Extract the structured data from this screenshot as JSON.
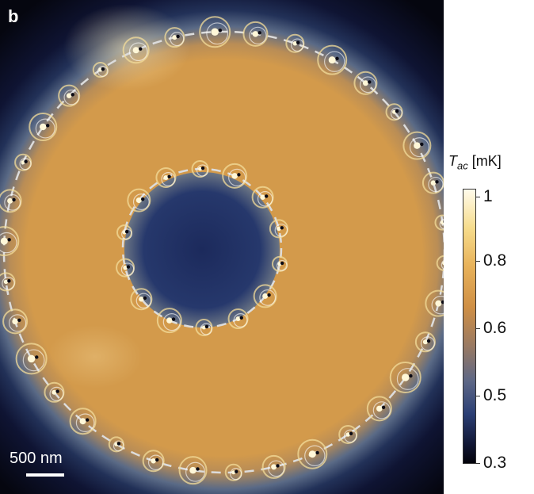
{
  "panel_label": "b",
  "scale_bar": {
    "label": "500 nm"
  },
  "colorbar": {
    "title_symbol": "T",
    "title_subscript": "ac",
    "title_unit": "[mK]",
    "ticks": [
      "1",
      "0.8",
      "0.6",
      "0.5",
      "0.3"
    ]
  }
}
